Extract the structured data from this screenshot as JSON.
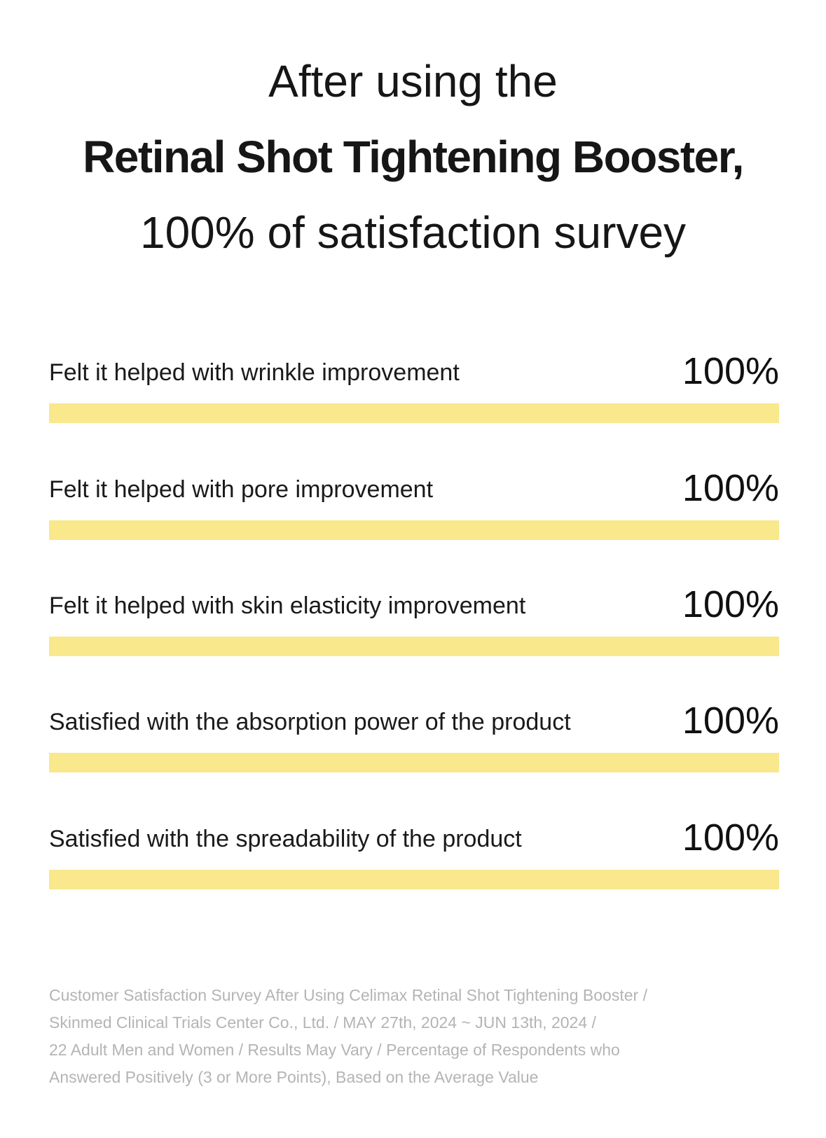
{
  "header": {
    "line1": "After using the",
    "line2": "Retinal Shot Tightening Booster,",
    "line3": "100% of satisfaction survey"
  },
  "colors": {
    "bar_fill": "#f9e88c",
    "text": "#161616",
    "footnote": "#b4b4b4"
  },
  "chart_data": {
    "type": "bar",
    "orientation": "horizontal",
    "categories": [
      "Felt it helped with wrinkle improvement",
      "Felt it helped with pore improvement",
      "Felt it helped with skin elasticity improvement",
      "Satisfied with the absorption power of the product",
      "Satisfied with the spreadability of the product"
    ],
    "values": [
      100,
      100,
      100,
      100,
      100
    ],
    "value_labels": [
      "100%",
      "100%",
      "100%",
      "100%",
      "100%"
    ],
    "xlim": [
      0,
      100
    ],
    "unit": "%",
    "grid": false,
    "legend": false
  },
  "footnote": {
    "line1": "Customer Satisfaction Survey After Using Celimax Retinal Shot Tightening Booster /",
    "line2": "Skinmed Clinical Trials Center Co., Ltd. / MAY 27th, 2024 ~ JUN 13th, 2024 /",
    "line3": "22 Adult Men and Women / Results May Vary / Percentage of Respondents who",
    "line4": "Answered Positively (3 or More Points), Based on the Average Value"
  }
}
